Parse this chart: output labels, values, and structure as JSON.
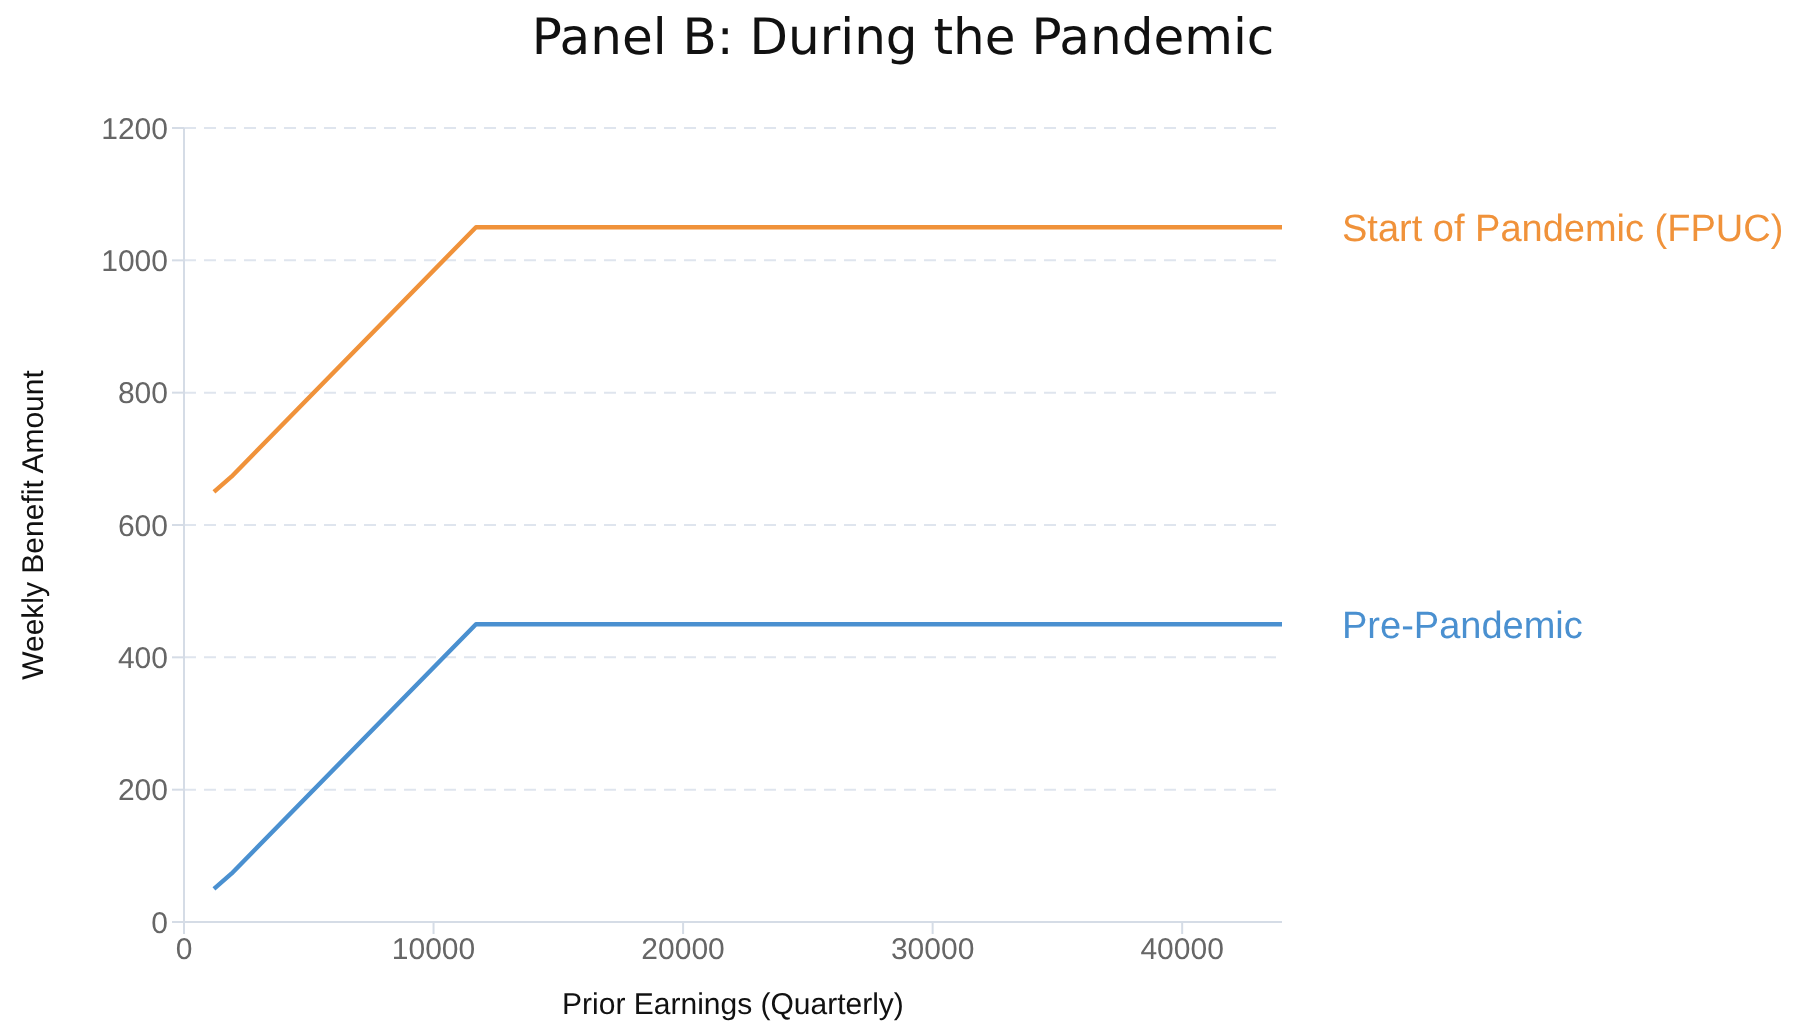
{
  "chart_data": {
    "type": "line",
    "title": "Panel B: During the Pandemic",
    "xlabel": "Prior Earnings (Quarterly)",
    "ylabel": "Weekly Benefit Amount",
    "x": [
      1200,
      1900,
      11700,
      44000
    ],
    "series": [
      {
        "name": "Start of Pandemic (FPUC)",
        "color": "#f0923a",
        "values": [
          650,
          673,
          1050,
          1050
        ]
      },
      {
        "name": "Pre-Pandemic",
        "color": "#4a90d0",
        "values": [
          50,
          73,
          450,
          450
        ]
      }
    ],
    "xlim": [
      0,
      44000
    ],
    "xticks": [
      0,
      10000,
      20000,
      30000,
      40000
    ],
    "ylim": [
      0,
      1200
    ],
    "yticks": [
      0,
      200,
      400,
      600,
      800,
      1000,
      1200
    ],
    "grid": "y",
    "legend": false,
    "marker": "none",
    "line_style": "solid"
  }
}
